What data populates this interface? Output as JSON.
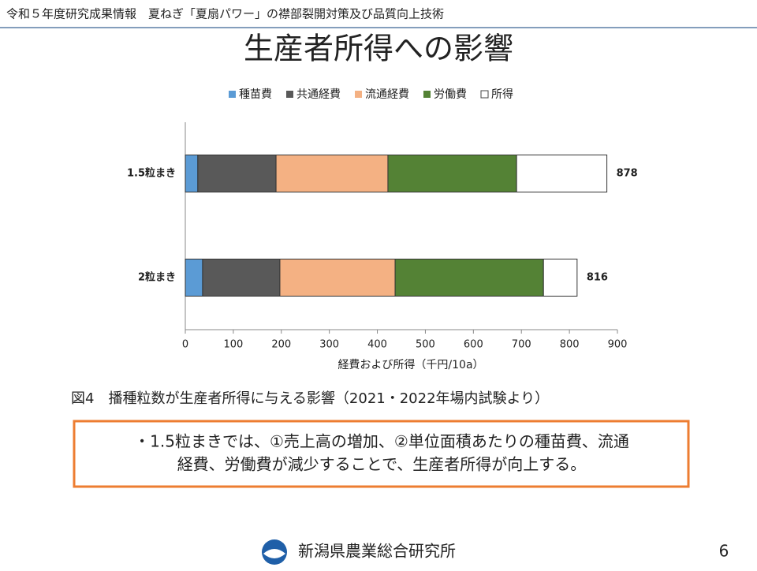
{
  "header": "令和５年度研究成果情報　夏ねぎ「夏扇パワー」の襟部裂開対策及び品質向上技術",
  "title": "生産者所得への影響",
  "chart_data": {
    "type": "stacked-barh",
    "categories": [
      "1.5粒まき",
      "2粒まき"
    ],
    "series": [
      {
        "name": "種苗費",
        "color": "#5b9bd5",
        "values": [
          26,
          36
        ]
      },
      {
        "name": "共通経費",
        "color": "#595959",
        "values": [
          163,
          161
        ]
      },
      {
        "name": "流通経費",
        "color": "#f4b183",
        "values": [
          233,
          240
        ]
      },
      {
        "name": "労働費",
        "color": "#548235",
        "values": [
          268,
          309
        ]
      },
      {
        "name": "所得",
        "color": "#ffffff",
        "values": [
          188,
          70
        ]
      }
    ],
    "totals": [
      878,
      816
    ],
    "xlim": [
      0,
      900
    ],
    "xticks": [
      0,
      100,
      200,
      300,
      400,
      500,
      600,
      700,
      800,
      900
    ],
    "xlabel": "経費および所得（千円/10a）",
    "legend": "top"
  },
  "caption": "図4　播種粒数が生産者所得に与える影響（2021・2022年場内試験より）",
  "note": [
    "・1.5粒まきでは、①売上高の増加、②単位面積あたりの種苗費、流通",
    "経費、労働費が減少することで、生産者所得が向上する。"
  ],
  "footer": {
    "org": "新潟県農業総合研究所",
    "page": "6"
  }
}
